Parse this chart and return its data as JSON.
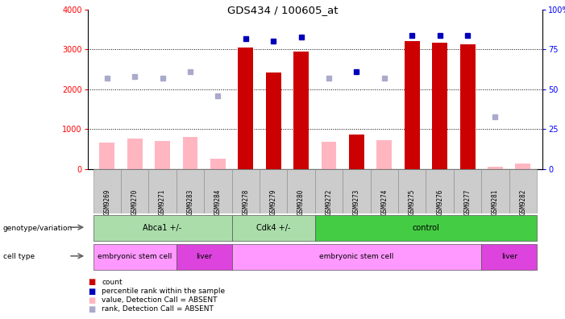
{
  "title": "GDS434 / 100605_at",
  "samples": [
    "GSM9269",
    "GSM9270",
    "GSM9271",
    "GSM9283",
    "GSM9284",
    "GSM9278",
    "GSM9279",
    "GSM9280",
    "GSM9272",
    "GSM9273",
    "GSM9274",
    "GSM9275",
    "GSM9276",
    "GSM9277",
    "GSM9281",
    "GSM9282"
  ],
  "count_values": [
    null,
    null,
    null,
    null,
    null,
    3050,
    2420,
    2950,
    null,
    860,
    null,
    3200,
    3160,
    3120,
    null,
    null
  ],
  "count_absent": [
    660,
    760,
    700,
    810,
    270,
    null,
    null,
    null,
    680,
    null,
    720,
    null,
    null,
    null,
    60,
    130
  ],
  "rank_present": [
    null,
    null,
    null,
    null,
    null,
    82,
    80,
    83,
    null,
    61,
    null,
    84,
    84,
    84,
    null,
    null
  ],
  "rank_absent": [
    57,
    58,
    57,
    61,
    46,
    null,
    null,
    null,
    57,
    null,
    57,
    null,
    null,
    null,
    33,
    null
  ],
  "ylim_left": [
    0,
    4000
  ],
  "ylim_right": [
    0,
    100
  ],
  "yticks_left": [
    0,
    1000,
    2000,
    3000,
    4000
  ],
  "yticks_right": [
    0,
    25,
    50,
    75,
    100
  ],
  "genotype_groups": [
    {
      "label": "Abca1 +/-",
      "start": 0,
      "end": 5
    },
    {
      "label": "Cdk4 +/-",
      "start": 5,
      "end": 8
    },
    {
      "label": "control",
      "start": 8,
      "end": 16
    }
  ],
  "cell_type_groups": [
    {
      "label": "embryonic stem cell",
      "start": 0,
      "end": 3
    },
    {
      "label": "liver",
      "start": 3,
      "end": 5
    },
    {
      "label": "embryonic stem cell",
      "start": 5,
      "end": 14
    },
    {
      "label": "liver",
      "start": 14,
      "end": 16
    }
  ],
  "legend_items": [
    {
      "label": "count",
      "color": "#CC0000"
    },
    {
      "label": "percentile rank within the sample",
      "color": "#0000BB"
    },
    {
      "label": "value, Detection Call = ABSENT",
      "color": "#FFB6C1"
    },
    {
      "label": "rank, Detection Call = ABSENT",
      "color": "#AAAACC"
    }
  ],
  "bar_color_present": "#CC0000",
  "bar_color_absent": "#FFB6C1",
  "dot_color_present": "#0000BB",
  "dot_color_absent": "#AAAACC",
  "geno_color_light": "#AADDAA",
  "geno_color_dark": "#44CC44",
  "cell_color_light": "#FF99FF",
  "cell_color_dark": "#DD44DD",
  "sample_bg_color": "#CCCCCC",
  "grid_color": "black",
  "grid_style": ":",
  "left_col_color": "#BBBBBB"
}
